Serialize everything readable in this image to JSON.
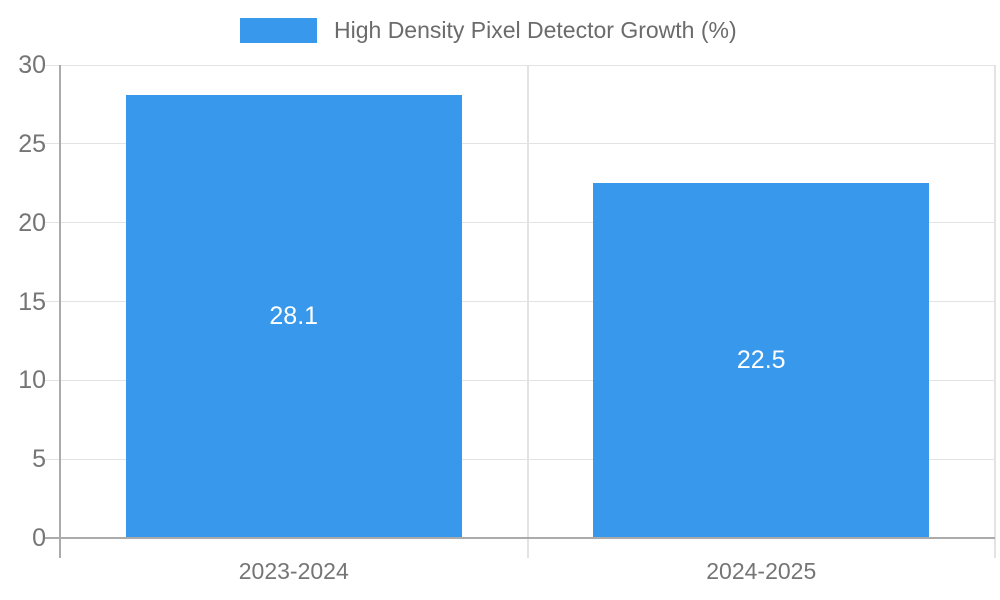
{
  "chart_data": {
    "type": "bar",
    "title": "High Density Pixel Detector Growth (%)",
    "categories": [
      "2023-2024",
      "2024-2025"
    ],
    "values": [
      28.1,
      22.5
    ],
    "data_labels": [
      "28.1",
      "22.5"
    ],
    "xlabel": "",
    "ylabel": "",
    "ylim": [
      0,
      30
    ],
    "yticks": [
      0,
      5,
      10,
      15,
      20,
      25,
      30
    ],
    "grid": true,
    "legend_position": "top-center",
    "colors": {
      "bar": "#3899EC",
      "bar_label_text": "#FFFFFF",
      "axis_text": "#757575",
      "legend_text": "#6B6B6B",
      "gridline": "#E3E3E3",
      "axis_line": "#ABABAB"
    }
  }
}
